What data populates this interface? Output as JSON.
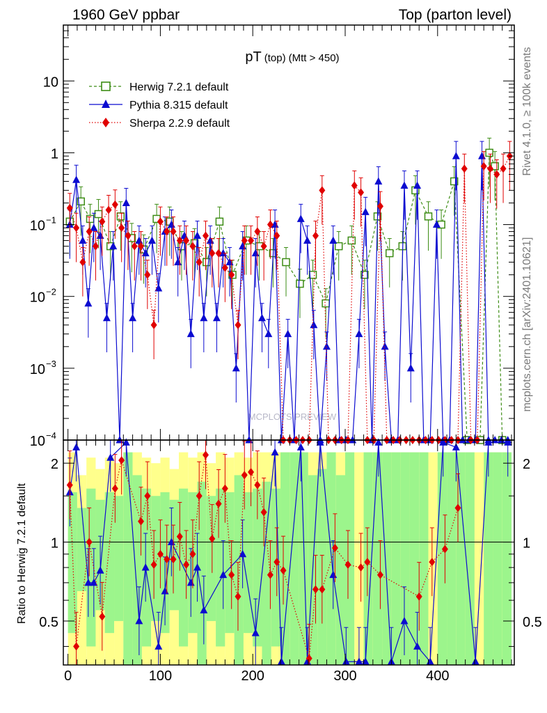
{
  "header": {
    "left": "1960 GeV ppbar",
    "right": "Top (parton level)"
  },
  "side_labels": {
    "rivet": "Rivet 4.1.0, ≥ 100k events",
    "mcplots": "mcplots.cern.ch [arXiv:2401.10621]"
  },
  "watermark": "MCPLOTS PREVIEW",
  "chart_data": [
    {
      "panel": "main",
      "type": "scatter",
      "title": "pT",
      "title_sub": "(top)",
      "title_cut": "(Mtt > 450)",
      "xlabel": "",
      "ylabel": "",
      "yscale": "log",
      "xlim": [
        -5,
        483
      ],
      "ylim": [
        0.0001,
        60
      ],
      "yticks": [
        {
          "value": 10,
          "label": "10"
        },
        {
          "value": 1,
          "label": "1"
        },
        {
          "value": 0.1,
          "label": "10",
          "exp": "−1"
        },
        {
          "value": 0.01,
          "label": "10",
          "exp": "−2"
        },
        {
          "value": 0.001,
          "label": "10",
          "exp": "−3"
        },
        {
          "value": 0.0001,
          "label": "10",
          "exp": "−4"
        }
      ],
      "legend_position": "top-left",
      "series": [
        {
          "name": "Herwig 7.2.1 default",
          "color": "#3c8c14",
          "marker": "open-square",
          "line": "dashed",
          "x": [
            2,
            14,
            24,
            33,
            46,
            57,
            69,
            82,
            96,
            110,
            123,
            137,
            150,
            164,
            178,
            193,
            207,
            222,
            236,
            251,
            265,
            279,
            293,
            307,
            321,
            335,
            348,
            362,
            376,
            390,
            404,
            418,
            432,
            446,
            456,
            462,
            470
          ],
          "y": [
            0.11,
            0.21,
            0.12,
            0.14,
            0.05,
            0.13,
            0.065,
            0.045,
            0.12,
            0.11,
            0.05,
            0.055,
            0.03,
            0.11,
            0.02,
            0.06,
            0.05,
            0.04,
            0.03,
            0.015,
            0.02,
            0.008,
            0.05,
            0.06,
            0.02,
            0.13,
            0.04,
            0.05,
            0.3,
            0.13,
            0.1,
            0.4,
            0.0001,
            0.0001,
            1.0,
            0.65,
            0.0001
          ]
        },
        {
          "name": "Pythia 8.315 default",
          "color": "#0b0bd0",
          "marker": "triangle",
          "line": "solid",
          "x": [
            2,
            9,
            16,
            22,
            28,
            35,
            42,
            49,
            56,
            63,
            70,
            77,
            84,
            91,
            98,
            105,
            112,
            119,
            126,
            133,
            140,
            147,
            154,
            161,
            168,
            175,
            182,
            189,
            196,
            203,
            210,
            217,
            224,
            231,
            238,
            245,
            252,
            259,
            266,
            273,
            280,
            287,
            294,
            301,
            308,
            315,
            322,
            329,
            336,
            343,
            350,
            357,
            364,
            371,
            378,
            385,
            392,
            399,
            406,
            413,
            420,
            427,
            434,
            441,
            448,
            455,
            462,
            469,
            476
          ],
          "y": [
            0.1,
            0.42,
            0.06,
            0.008,
            0.09,
            0.07,
            0.005,
            0.05,
            0.0001,
            0.2,
            0.005,
            0.06,
            0.04,
            0.06,
            0.013,
            0.08,
            0.1,
            0.03,
            0.07,
            0.003,
            0.07,
            0.005,
            0.06,
            0.005,
            0.04,
            0.03,
            0.001,
            0.05,
            0.0001,
            0.04,
            0.005,
            0.003,
            0.1,
            0.0001,
            0.003,
            0.0001,
            0.12,
            0.06,
            0.004,
            0.0001,
            0.002,
            0.06,
            0.0001,
            0.0001,
            0.0001,
            0.003,
            0.15,
            0.0001,
            0.4,
            0.002,
            0.0001,
            0.0001,
            0.35,
            0.001,
            0.35,
            0.0001,
            0.0001,
            0.1,
            0.0001,
            0.0001,
            0.9,
            0.0001,
            0.0001,
            0.0001,
            0.9,
            0.0001,
            0.0001,
            0.0001,
            0.0001
          ]
        },
        {
          "name": "Sherpa 2.2.9 default",
          "color": "#e00000",
          "marker": "diamond",
          "line": "dotted",
          "x": [
            2,
            9,
            16,
            23,
            30,
            37,
            44,
            51,
            58,
            65,
            72,
            79,
            86,
            93,
            100,
            107,
            114,
            121,
            128,
            135,
            142,
            149,
            156,
            163,
            170,
            177,
            184,
            191,
            198,
            205,
            212,
            219,
            226,
            233,
            240,
            247,
            254,
            261,
            268,
            275,
            282,
            289,
            296,
            303,
            310,
            317,
            324,
            331,
            338,
            345,
            352,
            359,
            366,
            373,
            380,
            387,
            394,
            401,
            408,
            415,
            422,
            429,
            436,
            443,
            450,
            457,
            464,
            471,
            478
          ],
          "y": [
            0.17,
            0.09,
            0.03,
            0.08,
            0.05,
            0.11,
            0.16,
            0.19,
            0.09,
            0.07,
            0.05,
            0.05,
            0.02,
            0.004,
            0.11,
            0.08,
            0.08,
            0.06,
            0.06,
            0.05,
            0.03,
            0.07,
            0.04,
            0.04,
            0.025,
            0.02,
            0.004,
            0.06,
            0.06,
            0.08,
            0.05,
            0.1,
            0.07,
            0.0001,
            0.0001,
            0.0001,
            0.0001,
            0.0001,
            0.07,
            0.3,
            0.0001,
            0.0001,
            0.0001,
            0.0001,
            0.35,
            0.28,
            0.0001,
            0.0001,
            0.18,
            0.0001,
            0.0001,
            0.0001,
            0.0001,
            0.0001,
            0.0001,
            0.0001,
            0.0001,
            0.0001,
            0.0001,
            0.0001,
            0.0001,
            0.6,
            0.0001,
            0.0001,
            0.65,
            0.6,
            0.5,
            0.6,
            0.9
          ]
        }
      ]
    },
    {
      "panel": "ratio",
      "type": "scatter",
      "xlabel": "",
      "ylabel": "Ratio to Herwig 7.2.1 default",
      "yscale": "log",
      "xlim": [
        -5,
        483
      ],
      "ylim": [
        0.34,
        2.45
      ],
      "yticks": [
        {
          "value": 2,
          "label": "2"
        },
        {
          "value": 1,
          "label": "1"
        },
        {
          "value": 0.5,
          "label": "0.5"
        }
      ],
      "xticks": [
        0,
        100,
        200,
        300,
        400
      ],
      "reference_line": 1,
      "uncertainty_bands": [
        {
          "name": "2 sigma",
          "color": "#ffff8c"
        },
        {
          "name": "1 sigma",
          "color": "#9cf58c"
        }
      ],
      "band_bins": {
        "x": [
          0,
          10,
          20,
          30,
          40,
          50,
          60,
          70,
          80,
          90,
          100,
          110,
          120,
          130,
          140,
          150,
          160,
          170,
          180,
          190,
          200,
          210,
          220,
          230,
          240,
          250,
          260,
          270,
          280,
          290,
          300,
          310,
          320,
          330,
          340,
          350,
          360,
          370,
          380,
          390,
          400,
          410,
          420,
          430,
          440,
          450,
          460,
          470
        ],
        "one_sigma": [
          0.55,
          0.35,
          0.6,
          0.45,
          0.55,
          0.5,
          1.2,
          0.8,
          0.6,
          0.5,
          0.55,
          0.45,
          0.6,
          0.55,
          0.7,
          0.5,
          0.6,
          0.55,
          0.8,
          0.55,
          0.6,
          0.7,
          0.6,
          1.2,
          1.2,
          1.2,
          0.8,
          0.9,
          1.2,
          0.8,
          1.2,
          0.0,
          1.2,
          1.2,
          1.2,
          1.2,
          1.2,
          1.2,
          1.2,
          0.0,
          1.2,
          1.2,
          1.2,
          1.2,
          0.0,
          1.2,
          1.2,
          1.2
        ],
        "two_sigma": [
          1.2,
          0.8,
          1.1,
          0.9,
          1.1,
          1.0,
          1.2,
          1.2,
          1.1,
          1.0,
          1.1,
          0.9,
          1.2,
          1.1,
          1.2,
          1.0,
          1.2,
          1.1,
          1.2,
          1.1,
          1.2,
          1.2,
          1.2,
          1.2,
          1.2,
          1.2,
          1.2,
          1.2,
          1.2,
          1.2,
          1.2,
          1.2,
          1.2,
          1.2,
          1.2,
          1.2,
          1.2,
          1.2,
          1.2,
          1.2,
          1.2,
          1.2,
          1.2,
          1.2,
          1.2,
          1.2,
          1.2,
          1.2
        ]
      },
      "series": [
        {
          "name": "Pythia 8.315 default",
          "color": "#0b0bd0",
          "marker": "triangle",
          "line": "solid",
          "x": [
            2,
            9,
            22,
            28,
            35,
            46,
            63,
            77,
            84,
            98,
            105,
            112,
            133,
            140,
            147,
            168,
            189,
            203,
            224,
            231,
            252,
            259,
            273,
            287,
            301,
            315,
            322,
            336,
            350,
            364,
            378,
            392,
            406,
            420,
            441,
            455,
            476
          ],
          "y": [
            1.55,
            2.3,
            0.7,
            0.7,
            0.78,
            2.1,
            2.4,
            0.5,
            0.8,
            0.4,
            0.65,
            1.0,
            0.7,
            0.8,
            0.55,
            0.75,
            0.9,
            0.45,
            2.2,
            0.35,
            2.3,
            0.35,
            2.4,
            0.75,
            0.35,
            0.35,
            0.35,
            2.4,
            0.35,
            0.5,
            0.4,
            0.35,
            2.4,
            2.3,
            0.35,
            2.4,
            2.4
          ]
        },
        {
          "name": "Sherpa 2.2.9 default",
          "color": "#e00000",
          "marker": "diamond",
          "line": "dotted",
          "x": [
            2,
            9,
            23,
            37,
            51,
            58,
            79,
            86,
            93,
            100,
            107,
            114,
            121,
            128,
            135,
            142,
            149,
            156,
            163,
            170,
            177,
            184,
            191,
            198,
            205,
            212,
            219,
            226,
            233,
            261,
            268,
            275,
            289,
            303,
            317,
            324,
            338,
            380,
            394,
            408,
            422
          ],
          "y": [
            1.65,
            0.4,
            1.0,
            0.52,
            1.6,
            2.05,
            1.2,
            1.5,
            0.82,
            0.9,
            0.86,
            0.86,
            1.05,
            0.82,
            0.9,
            1.5,
            2.15,
            1.03,
            1.4,
            1.6,
            0.75,
            0.62,
            1.8,
            1.85,
            1.65,
            1.3,
            0.75,
            0.84,
            0.78,
            0.36,
            0.66,
            0.66,
            0.95,
            0.82,
            0.8,
            0.84,
            0.75,
            0.62,
            0.84,
            0.94,
            1.35
          ]
        }
      ]
    }
  ]
}
